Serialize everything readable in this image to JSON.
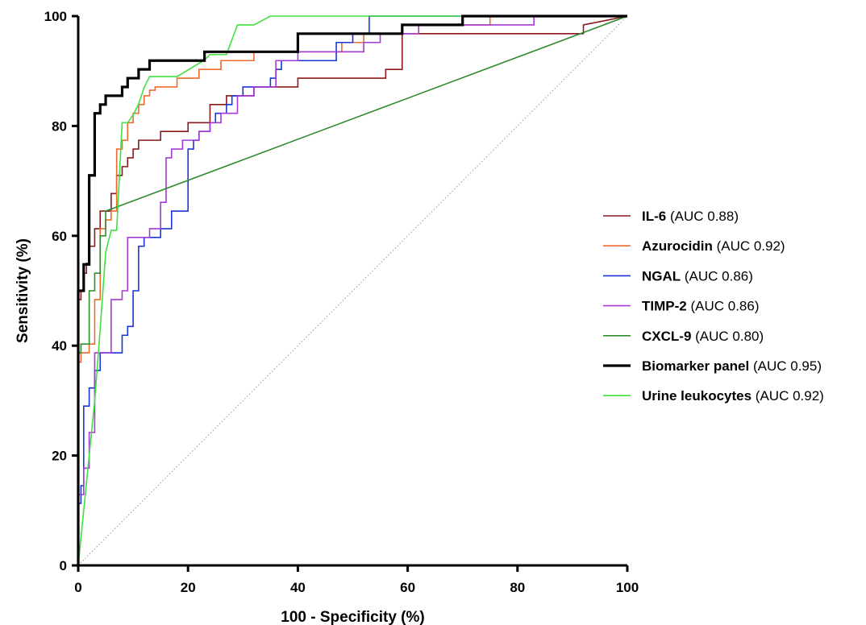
{
  "chart_data": {
    "type": "line",
    "title": "",
    "xlabel": "100 - Specificity (%)",
    "ylabel": "Sensitivity (%)",
    "xlim": [
      0,
      100
    ],
    "ylim": [
      0,
      100
    ],
    "xticks": [
      0,
      20,
      40,
      60,
      80,
      100
    ],
    "yticks": [
      0,
      20,
      40,
      60,
      80,
      100
    ],
    "grid": false,
    "legend_position": "right",
    "reference_line": {
      "x": [
        0,
        100
      ],
      "y": [
        0,
        100
      ],
      "color": "#999999",
      "style": "dotted"
    },
    "series": [
      {
        "name": "IL-6",
        "auc_label": "(AUC 0.88)",
        "color": "#8b1a1a",
        "width": 1.6,
        "x": [
          0,
          0,
          0.5,
          0.5,
          1,
          1,
          1.5,
          1.5,
          2,
          2,
          3,
          3,
          4,
          4,
          6,
          6,
          7,
          7,
          8,
          8,
          9,
          9,
          10,
          10,
          11,
          11,
          12,
          12,
          15,
          15,
          20,
          20,
          24,
          24,
          27,
          27,
          32,
          32,
          36,
          36,
          40,
          40,
          50,
          50,
          56,
          56,
          59,
          59,
          92,
          92,
          100
        ],
        "y": [
          0,
          48.4,
          48.4,
          50,
          50,
          53.2,
          53.2,
          55,
          55,
          58.1,
          58.1,
          61.3,
          61.3,
          64.5,
          64.5,
          67.7,
          67.7,
          71,
          71,
          72.6,
          72.6,
          74.2,
          74.2,
          75.8,
          75.8,
          77.4,
          77.4,
          77.4,
          77.4,
          79,
          79,
          80.6,
          80.6,
          83.9,
          83.9,
          85.5,
          85.5,
          87.1,
          87.1,
          87.1,
          87.1,
          88.7,
          88.7,
          88.7,
          88.7,
          90.3,
          90.3,
          96.8,
          96.8,
          98.4,
          100
        ]
      },
      {
        "name": "Azurocidin",
        "auc_label": "(AUC 0.92)",
        "color": "#ef6a2d",
        "width": 1.6,
        "x": [
          0,
          0,
          0.5,
          0.5,
          2,
          2,
          3,
          3,
          4,
          4,
          5,
          5,
          6,
          6,
          7,
          7,
          8,
          8,
          9,
          9,
          10,
          10,
          11,
          11,
          12,
          12,
          13,
          13,
          14,
          14,
          18,
          18,
          22,
          22,
          26,
          26,
          32,
          32,
          38,
          38,
          48,
          48,
          52,
          52,
          55,
          55,
          62,
          62,
          72,
          72,
          75,
          75,
          100
        ],
        "y": [
          0,
          37,
          37,
          38.7,
          38.7,
          40.3,
          40.3,
          48.4,
          48.4,
          61.3,
          61.3,
          62.9,
          62.9,
          64.5,
          64.5,
          75.8,
          75.8,
          77.4,
          77.4,
          80.6,
          80.6,
          82.3,
          82.3,
          83.9,
          83.9,
          85.5,
          85.5,
          86.5,
          86.5,
          87.1,
          87.1,
          88.7,
          88.7,
          90.3,
          90.3,
          91.9,
          91.9,
          93.5,
          93.5,
          93.5,
          93.5,
          95.2,
          95.2,
          96.8,
          96.8,
          96.8,
          96.8,
          98.4,
          98.4,
          98.4,
          98.4,
          100,
          100
        ]
      },
      {
        "name": "NGAL",
        "auc_label": "(AUC 0.86)",
        "color": "#1a35d9",
        "width": 1.6,
        "x": [
          0,
          0,
          0.5,
          0.5,
          1,
          1,
          2,
          2,
          3,
          3,
          4,
          4,
          8,
          8,
          9,
          9,
          10,
          10,
          11,
          11,
          12,
          12,
          15,
          15,
          17,
          17,
          20,
          20,
          21,
          21,
          22,
          22,
          24,
          24,
          25,
          25,
          27,
          27,
          28,
          28,
          30,
          30,
          35,
          35,
          36,
          36,
          37,
          37,
          38,
          38,
          47,
          47,
          50,
          50,
          53,
          53,
          100
        ],
        "y": [
          0,
          11.3,
          11.3,
          14.5,
          14.5,
          29,
          29,
          32.3,
          32.3,
          35.5,
          35.5,
          38.7,
          38.7,
          41.9,
          41.9,
          43.5,
          43.5,
          50,
          50,
          58.1,
          58.1,
          59.7,
          59.7,
          61.3,
          61.3,
          64.5,
          64.5,
          75.8,
          75.8,
          77.4,
          77.4,
          79,
          79,
          80.6,
          80.6,
          82.3,
          82.3,
          83.9,
          83.9,
          85.5,
          85.5,
          87.1,
          87.1,
          88.7,
          88.7,
          90.3,
          90.3,
          91.9,
          91.9,
          91.9,
          91.9,
          95.2,
          95.2,
          96.8,
          96.8,
          100,
          100
        ]
      },
      {
        "name": "TIMP-2",
        "auc_label": "(AUC 0.86)",
        "color": "#a63ad6",
        "width": 1.6,
        "x": [
          0,
          0,
          1,
          1,
          2,
          2,
          3,
          3,
          4,
          4,
          6,
          6,
          8,
          8,
          9,
          9,
          11,
          11,
          13,
          13,
          15,
          15,
          16,
          16,
          17,
          17,
          18,
          18,
          19,
          19,
          22,
          22,
          24,
          24,
          26,
          26,
          29,
          29,
          32,
          32,
          36,
          36,
          40,
          40,
          44,
          44,
          52,
          52,
          55,
          55,
          62,
          62,
          83,
          83,
          100
        ],
        "y": [
          0,
          12.9,
          12.9,
          17.7,
          17.7,
          24.2,
          24.2,
          38.7,
          38.7,
          38.7,
          38.7,
          48.4,
          48.4,
          50,
          50,
          59.7,
          59.7,
          59.7,
          59.7,
          61.3,
          61.3,
          66.1,
          66.1,
          74.2,
          74.2,
          75.8,
          75.8,
          75.8,
          75.8,
          77.4,
          77.4,
          79,
          79,
          80.6,
          80.6,
          82.3,
          82.3,
          85.5,
          85.5,
          87.1,
          87.1,
          91.9,
          91.9,
          93.5,
          93.5,
          93.5,
          93.5,
          95.2,
          95.2,
          96.8,
          96.8,
          98.4,
          98.4,
          100,
          100
        ]
      },
      {
        "name": "CXCL-9",
        "auc_label": "(AUC 0.80)",
        "color": "#2e8b2e",
        "width": 1.6,
        "x": [
          0,
          0,
          0.5,
          0.5,
          2,
          2,
          3,
          3,
          4,
          4,
          5,
          5,
          100
        ],
        "y": [
          0,
          38.7,
          38.7,
          40.3,
          40.3,
          50,
          50,
          53.2,
          53.2,
          60,
          60,
          64.5,
          100
        ]
      },
      {
        "name": "Biomarker panel",
        "auc_label": "(AUC 0.95)",
        "color": "#000000",
        "width": 3.2,
        "x": [
          0,
          0,
          1,
          1,
          2,
          2,
          3,
          3,
          4,
          4,
          5,
          5,
          8,
          8,
          9,
          9,
          11,
          11,
          13,
          13,
          18,
          18,
          23,
          23,
          24,
          24,
          40,
          40,
          41,
          41,
          59,
          59,
          70,
          70,
          100
        ],
        "y": [
          0,
          50,
          50,
          54.8,
          54.8,
          71,
          71,
          82.3,
          82.3,
          83.9,
          83.9,
          85.5,
          85.5,
          87.1,
          87.1,
          88.7,
          88.7,
          90.3,
          90.3,
          91.9,
          91.9,
          91.9,
          91.9,
          93.5,
          93.5,
          93.5,
          93.5,
          96.8,
          96.8,
          96.8,
          96.8,
          98.4,
          98.4,
          100,
          100
        ]
      },
      {
        "name": "Urine leukocytes",
        "auc_label": "(AUC 0.92)",
        "color": "#3fe03f",
        "width": 1.6,
        "x": [
          0,
          3,
          4,
          5,
          6,
          7,
          8,
          9,
          10,
          11,
          12,
          13,
          18,
          23,
          24,
          27,
          29,
          32,
          35,
          36,
          100
        ],
        "y": [
          0,
          30,
          43,
          57,
          61,
          61,
          80.6,
          80.6,
          82,
          84,
          87,
          89,
          89,
          92,
          93,
          93,
          98.4,
          98.4,
          100,
          100,
          100
        ]
      }
    ]
  }
}
